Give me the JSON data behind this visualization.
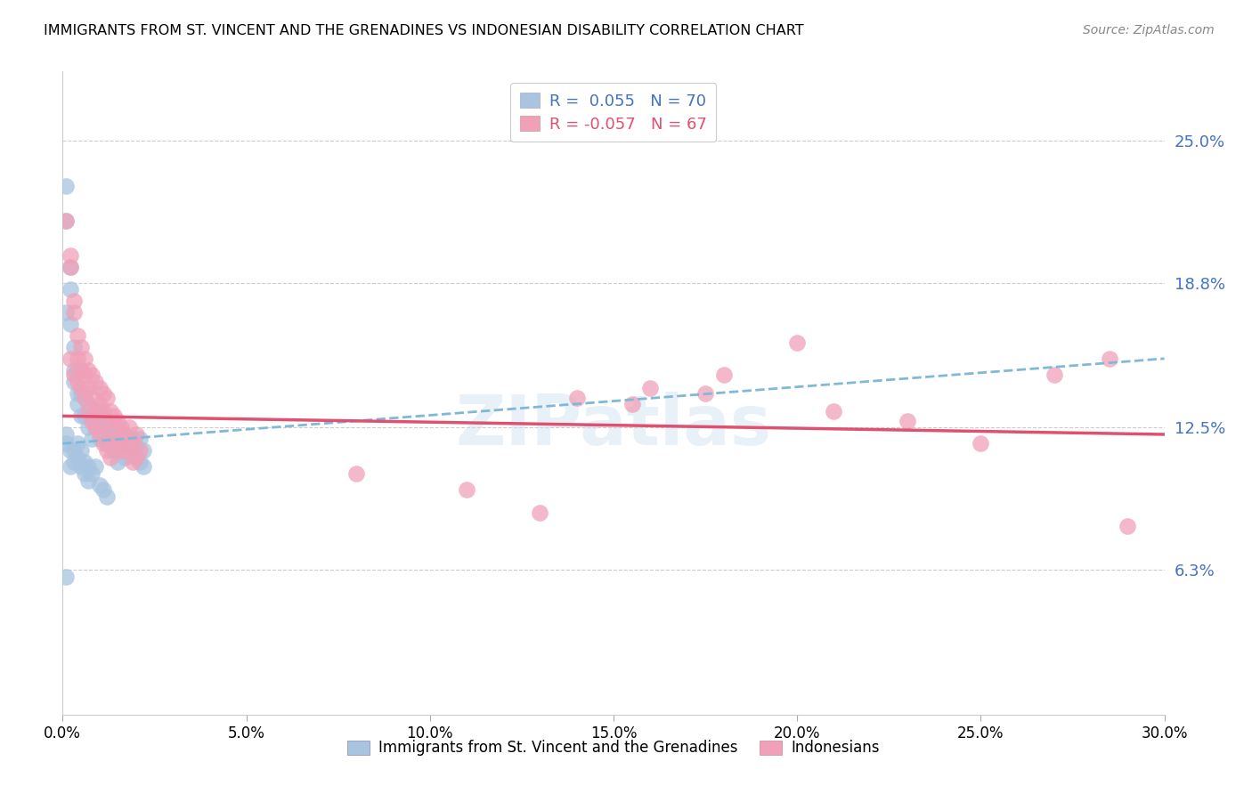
{
  "title": "IMMIGRANTS FROM ST. VINCENT AND THE GRENADINES VS INDONESIAN DISABILITY CORRELATION CHART",
  "source": "Source: ZipAtlas.com",
  "xlabel_ticks": [
    "0.0%",
    "5.0%",
    "10.0%",
    "15.0%",
    "20.0%",
    "25.0%",
    "30.0%"
  ],
  "xlabel_vals": [
    0.0,
    0.05,
    0.1,
    0.15,
    0.2,
    0.25,
    0.3
  ],
  "ylabel_ticks": [
    "6.3%",
    "12.5%",
    "18.8%",
    "25.0%"
  ],
  "ylabel_vals": [
    0.063,
    0.125,
    0.188,
    0.25
  ],
  "xlim": [
    0.0,
    0.3
  ],
  "ylim": [
    0.0,
    0.28
  ],
  "R_blue": 0.055,
  "N_blue": 70,
  "R_pink": -0.057,
  "N_pink": 67,
  "blue_label": "Immigrants from St. Vincent and the Grenadines",
  "pink_label": "Indonesians",
  "blue_color": "#a8c4e0",
  "pink_color": "#f0a0b8",
  "blue_line_color": "#3060a0",
  "pink_line_color": "#e05070",
  "blue_trendline_color": "#80b8d8",
  "watermark": "ZIPatlas",
  "blue_scatter_x": [
    0.001,
    0.001,
    0.002,
    0.001,
    0.002,
    0.002,
    0.003,
    0.003,
    0.003,
    0.004,
    0.004,
    0.004,
    0.005,
    0.005,
    0.006,
    0.006,
    0.007,
    0.007,
    0.008,
    0.008,
    0.009,
    0.009,
    0.01,
    0.01,
    0.01,
    0.011,
    0.011,
    0.012,
    0.012,
    0.013,
    0.013,
    0.014,
    0.014,
    0.015,
    0.015,
    0.015,
    0.016,
    0.016,
    0.017,
    0.017,
    0.018,
    0.018,
    0.019,
    0.019,
    0.02,
    0.02,
    0.021,
    0.021,
    0.022,
    0.022,
    0.001,
    0.001,
    0.002,
    0.002,
    0.003,
    0.003,
    0.004,
    0.004,
    0.005,
    0.005,
    0.006,
    0.006,
    0.007,
    0.007,
    0.008,
    0.009,
    0.01,
    0.011,
    0.012,
    0.001
  ],
  "blue_scatter_y": [
    0.23,
    0.215,
    0.195,
    0.175,
    0.17,
    0.185,
    0.16,
    0.15,
    0.145,
    0.15,
    0.14,
    0.135,
    0.14,
    0.13,
    0.14,
    0.13,
    0.135,
    0.125,
    0.13,
    0.12,
    0.13,
    0.125,
    0.127,
    0.133,
    0.12,
    0.125,
    0.13,
    0.128,
    0.118,
    0.122,
    0.118,
    0.122,
    0.115,
    0.125,
    0.118,
    0.11,
    0.122,
    0.115,
    0.118,
    0.112,
    0.118,
    0.113,
    0.12,
    0.115,
    0.117,
    0.112,
    0.12,
    0.11,
    0.108,
    0.115,
    0.122,
    0.118,
    0.115,
    0.108,
    0.115,
    0.11,
    0.118,
    0.112,
    0.115,
    0.108,
    0.11,
    0.105,
    0.108,
    0.102,
    0.105,
    0.108,
    0.1,
    0.098,
    0.095,
    0.06
  ],
  "pink_scatter_x": [
    0.001,
    0.002,
    0.002,
    0.003,
    0.003,
    0.004,
    0.004,
    0.005,
    0.005,
    0.006,
    0.006,
    0.007,
    0.007,
    0.008,
    0.008,
    0.009,
    0.009,
    0.01,
    0.01,
    0.011,
    0.011,
    0.012,
    0.012,
    0.013,
    0.013,
    0.014,
    0.014,
    0.015,
    0.015,
    0.016,
    0.016,
    0.017,
    0.017,
    0.018,
    0.018,
    0.019,
    0.019,
    0.02,
    0.02,
    0.021,
    0.002,
    0.003,
    0.004,
    0.005,
    0.006,
    0.007,
    0.008,
    0.009,
    0.01,
    0.011,
    0.012,
    0.013,
    0.18,
    0.2,
    0.14,
    0.16,
    0.27,
    0.285,
    0.155,
    0.175,
    0.21,
    0.23,
    0.25,
    0.08,
    0.11,
    0.13,
    0.29
  ],
  "pink_scatter_y": [
    0.215,
    0.2,
    0.195,
    0.18,
    0.175,
    0.165,
    0.155,
    0.16,
    0.15,
    0.155,
    0.148,
    0.15,
    0.142,
    0.148,
    0.138,
    0.145,
    0.132,
    0.142,
    0.135,
    0.14,
    0.132,
    0.138,
    0.128,
    0.132,
    0.125,
    0.13,
    0.12,
    0.128,
    0.118,
    0.125,
    0.115,
    0.122,
    0.115,
    0.118,
    0.125,
    0.118,
    0.11,
    0.122,
    0.112,
    0.115,
    0.155,
    0.148,
    0.145,
    0.142,
    0.138,
    0.132,
    0.128,
    0.125,
    0.122,
    0.118,
    0.115,
    0.112,
    0.148,
    0.162,
    0.138,
    0.142,
    0.148,
    0.155,
    0.135,
    0.14,
    0.132,
    0.128,
    0.118,
    0.105,
    0.098,
    0.088,
    0.082
  ],
  "blue_trendline_x": [
    0.0,
    0.3
  ],
  "blue_trendline_y": [
    0.118,
    0.155
  ],
  "pink_trendline_x": [
    0.0,
    0.3
  ],
  "pink_trendline_y": [
    0.13,
    0.122
  ]
}
